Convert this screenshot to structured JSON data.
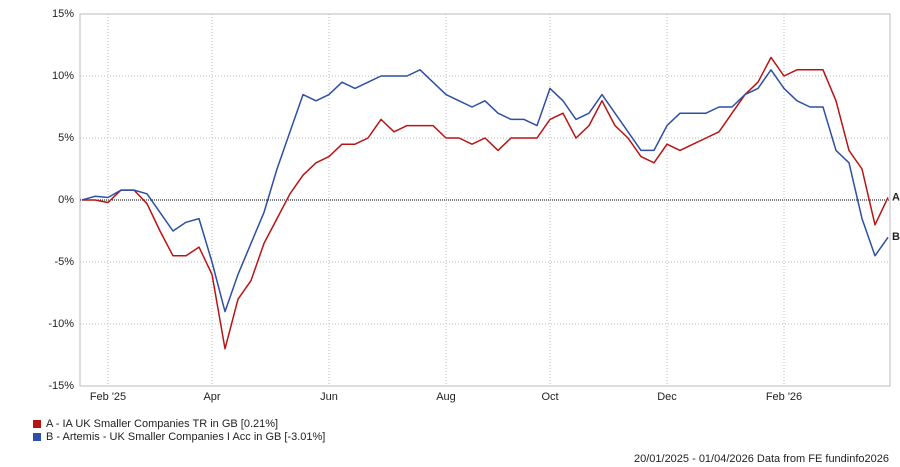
{
  "chart_data": {
    "type": "line",
    "categories": [
      null,
      null,
      "Feb '25",
      null,
      null,
      null,
      null,
      null,
      null,
      null,
      "Apr",
      null,
      null,
      null,
      null,
      null,
      null,
      null,
      null,
      "Jun",
      null,
      null,
      null,
      null,
      null,
      null,
      null,
      null,
      "Aug",
      null,
      null,
      null,
      null,
      null,
      null,
      null,
      "Oct",
      null,
      null,
      null,
      null,
      null,
      null,
      null,
      null,
      "Dec",
      null,
      null,
      null,
      null,
      null,
      null,
      null,
      null,
      "Feb '26",
      null,
      null,
      null,
      null,
      null,
      null,
      null,
      null
    ],
    "series": [
      {
        "name": "A - IA UK Smaller Companies TR in GB [0.21%]",
        "label": "A",
        "color": "#b81414",
        "values": [
          0,
          0,
          -0.2,
          0.8,
          0.8,
          -0.3,
          -2.5,
          -4.5,
          -4.5,
          -3.8,
          -6,
          -12,
          -8,
          -6.5,
          -3.5,
          -1.5,
          0.5,
          2,
          3,
          3.5,
          4.5,
          4.5,
          5,
          6.5,
          5.5,
          6,
          6,
          6,
          5,
          5,
          4.5,
          5,
          4,
          5,
          5,
          5,
          6.5,
          7,
          5,
          6,
          8,
          6,
          5,
          3.5,
          3,
          4.5,
          4,
          4.5,
          5,
          5.5,
          7,
          8.5,
          9.5,
          11.5,
          10,
          10.5,
          10.5,
          10.5,
          8,
          4,
          2.5,
          -2,
          0.21
        ]
      },
      {
        "name": "B - Artemis - UK Smaller Companies I Acc in GB [-3.01%]",
        "label": "B",
        "color": "#2e4fa3",
        "values": [
          0,
          0.3,
          0.2,
          0.8,
          0.8,
          0.5,
          -1,
          -2.5,
          -1.8,
          -1.5,
          -5,
          -9,
          -6,
          -3.5,
          -1,
          2.5,
          5.5,
          8.5,
          8,
          8.5,
          9.5,
          9,
          9.5,
          10,
          10,
          10,
          10.5,
          9.5,
          8.5,
          8,
          7.5,
          8,
          7,
          6.5,
          6.5,
          6,
          9,
          8,
          6.5,
          7,
          8.5,
          7,
          5.5,
          4,
          4,
          6,
          7,
          7,
          7,
          7.5,
          7.5,
          8.5,
          9,
          10.5,
          9,
          8,
          7.5,
          7.5,
          4,
          3,
          -1.5,
          -4.5,
          -3.01
        ]
      }
    ],
    "ylim": [
      -15,
      15
    ],
    "yticks": [
      {
        "value": -15,
        "label": "-15%"
      },
      {
        "value": -10,
        "label": "-10%"
      },
      {
        "value": -5,
        "label": "-5%"
      },
      {
        "value": 0,
        "label": "0%"
      },
      {
        "value": 5,
        "label": "5%"
      },
      {
        "value": 10,
        "label": "10%"
      },
      {
        "value": 15,
        "label": "15%"
      }
    ],
    "grid": true,
    "footer": "20/01/2025 - 01/04/2026 Data from FE fundinfo2026"
  }
}
